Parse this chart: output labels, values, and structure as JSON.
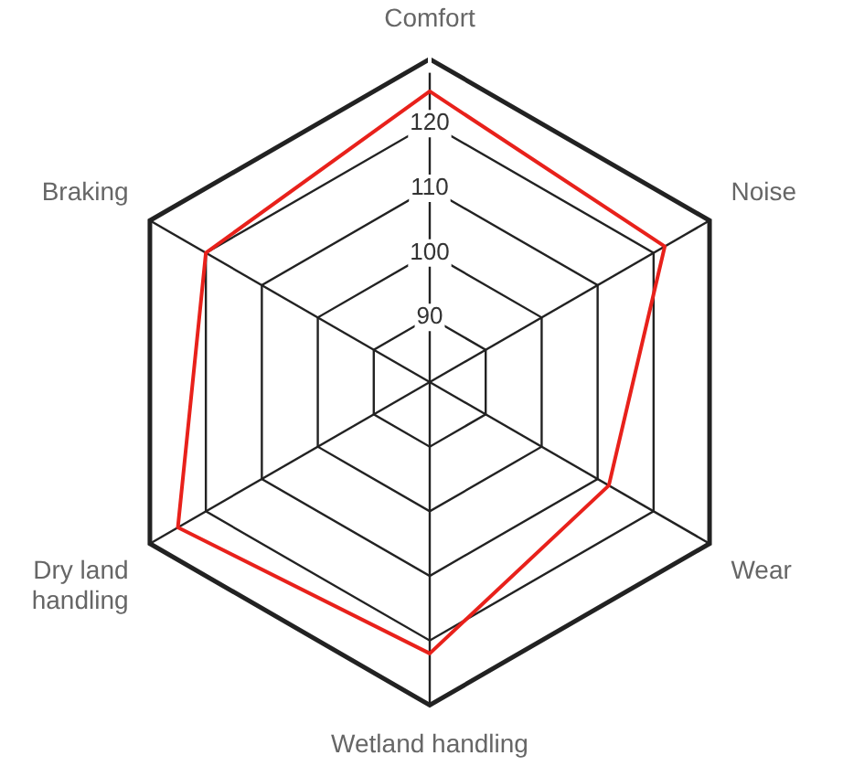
{
  "chart_data": {
    "type": "radar",
    "categories": [
      "Comfort",
      "Noise",
      "Wear",
      "Wetland handling",
      "Dry land handling",
      "Braking"
    ],
    "series": [
      {
        "color": "#e8211b",
        "values": [
          125,
          122,
          112,
          122,
          125,
          120
        ]
      }
    ],
    "ylim": [
      80,
      130
    ],
    "yticks": [
      90,
      100,
      110,
      120
    ],
    "legend": false,
    "marker": "none"
  }
}
